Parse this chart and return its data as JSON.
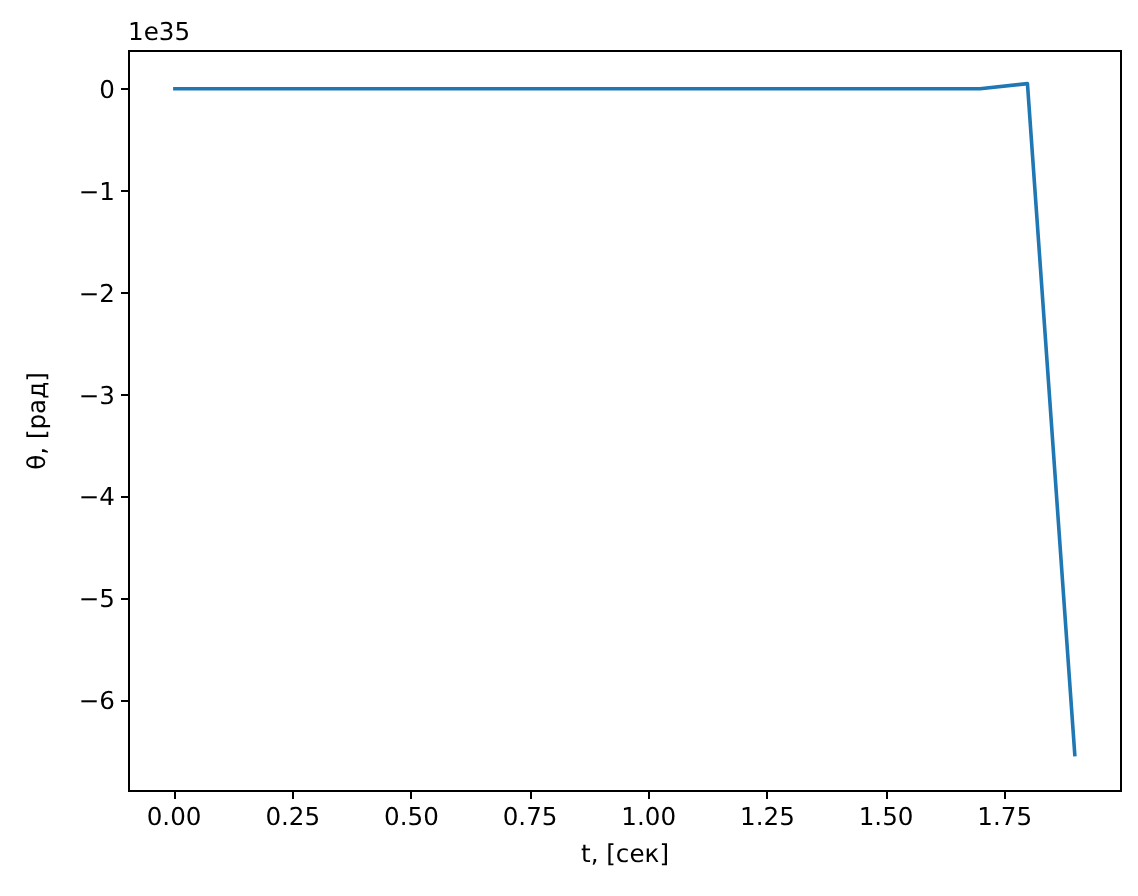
{
  "chart_data": {
    "type": "line",
    "xlabel": "t, [сек]",
    "ylabel": "θ, [рад]",
    "annotations": [
      "1e35"
    ],
    "x": [
      0,
      0.1,
      0.2,
      0.3,
      0.4,
      0.5,
      0.6,
      0.7,
      0.8,
      0.9,
      1.0,
      1.1,
      1.2,
      1.3,
      1.4,
      1.5,
      1.6,
      1.7,
      1.8,
      1.9
    ],
    "series": [
      {
        "color": "#1f77b4",
        "values": [
          0,
          0,
          0,
          0,
          0,
          0,
          0,
          0,
          0,
          0,
          0,
          0,
          0,
          0,
          0,
          0,
          0,
          0,
          0.05,
          -6.55
        ]
      }
    ],
    "xlim": [
      -0.095,
      1.995
    ],
    "ylim": [
      -6.88,
      0.38
    ],
    "xticks": [
      {
        "value": 0,
        "label": "0.00"
      },
      0.25,
      {
        "value": 0.5,
        "label": "0.50"
      },
      0.75,
      {
        "value": 1,
        "label": "1.00"
      },
      1.25,
      {
        "value": 1.5,
        "label": "1.50"
      },
      1.75
    ],
    "yticks": [
      -6,
      -5,
      -4,
      -3,
      -2,
      -1,
      0
    ]
  }
}
